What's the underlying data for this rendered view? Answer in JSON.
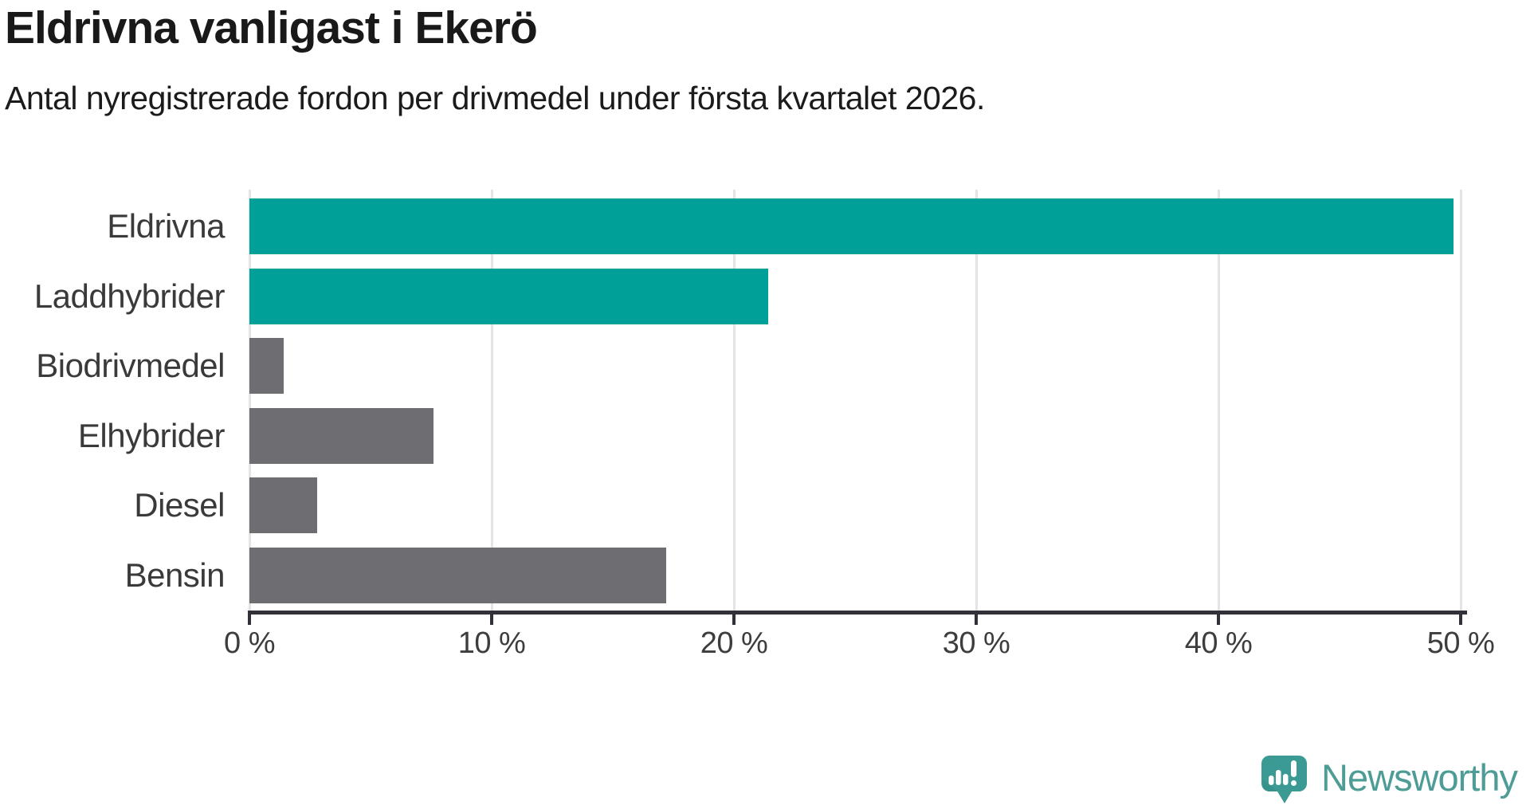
{
  "title": "Eldrivna vanligast i Ekerö",
  "subtitle": "Antal nyregistrerade fordon per drivmedel under första kvartalet 2026.",
  "brand": {
    "name": "Newsworthy",
    "wordmark_color": "#4d9c96",
    "icon_color": "#3b9b94",
    "icon_shade_color": "#338a84",
    "icon_glyph_color": "#ffffff"
  },
  "chart_data": {
    "type": "bar",
    "orientation": "horizontal",
    "categories": [
      "Eldrivna",
      "Laddhybrider",
      "Biodrivmedel",
      "Elhybrider",
      "Diesel",
      "Bensin"
    ],
    "values": [
      49.7,
      21.4,
      1.4,
      7.6,
      2.8,
      17.2
    ],
    "unit": "%",
    "bar_colors": [
      "#00a099",
      "#00a099",
      "#6d6d72",
      "#6d6d72",
      "#6d6d72",
      "#6d6d72"
    ],
    "highlight_color": "#00a099",
    "default_bar_color": "#6d6d72",
    "xlim": [
      0,
      50
    ],
    "tick_values": [
      0,
      10,
      20,
      30,
      40,
      50
    ],
    "tick_labels": [
      "0 %",
      "10 %",
      "20 %",
      "30 %",
      "40 %",
      "50 %"
    ],
    "grid": true,
    "grid_color": "#e4e4e4",
    "axis_color": "#32313a",
    "label_color": "#3a3a3a",
    "legend": "none",
    "title": "Eldrivna vanligast i Ekerö",
    "xlabel": "",
    "ylabel": ""
  }
}
